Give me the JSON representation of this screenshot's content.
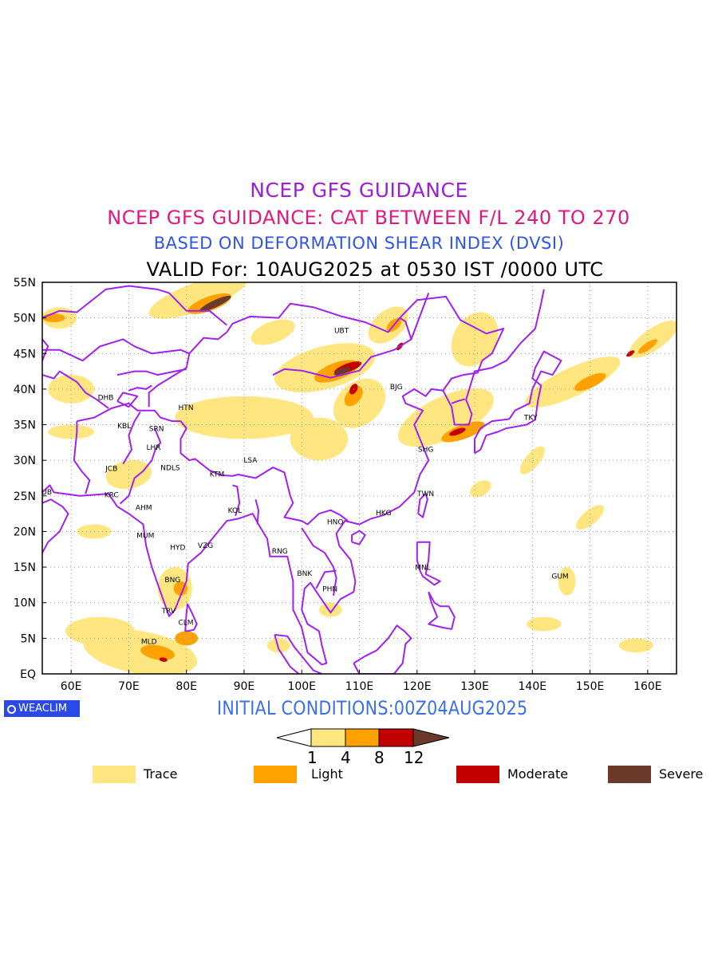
{
  "titles": {
    "line1": "NCEP GFS GUIDANCE",
    "line2": "NCEP GFS GUIDANCE: CAT BETWEEN F/L 240 TO 270",
    "line3": "BASED ON DEFORMATION SHEAR INDEX (DVSI)",
    "line4": "VALID For: 10AUG2025 at 0530 IST /0000 UTC"
  },
  "map": {
    "lon_range": [
      55,
      165
    ],
    "lat_range": [
      0,
      55
    ],
    "lat_labels": [
      "55N",
      "50N",
      "45N",
      "40N",
      "35N",
      "30N",
      "25N",
      "20N",
      "15N",
      "10N",
      "5N",
      "EQ"
    ],
    "lat_values": [
      55,
      50,
      45,
      40,
      35,
      30,
      25,
      20,
      15,
      10,
      5,
      0
    ],
    "lon_labels": [
      "60E",
      "70E",
      "80E",
      "90E",
      "100E",
      "110E",
      "120E",
      "130E",
      "140E",
      "150E",
      "160E"
    ],
    "lon_values": [
      60,
      70,
      80,
      90,
      100,
      110,
      120,
      130,
      140,
      150,
      160
    ],
    "grid": true,
    "colors": {
      "trace": "#ffe680",
      "light": "#ffa200",
      "moderate": "#c20000",
      "severe": "#6b3a2a",
      "border": "#a020f0"
    },
    "stations": [
      {
        "code": "UBT",
        "lon": 106.9,
        "lat": 47.9
      },
      {
        "code": "BJG",
        "lon": 116.4,
        "lat": 40.0
      },
      {
        "code": "DHB",
        "lon": 66.0,
        "lat": 38.5
      },
      {
        "code": "HTN",
        "lon": 79.9,
        "lat": 37.1
      },
      {
        "code": "KBL",
        "lon": 69.2,
        "lat": 34.5
      },
      {
        "code": "SRN",
        "lon": 74.8,
        "lat": 34.1
      },
      {
        "code": "TKY",
        "lon": 139.7,
        "lat": 35.7
      },
      {
        "code": "LHR",
        "lon": 74.3,
        "lat": 31.5
      },
      {
        "code": "SHG",
        "lon": 121.5,
        "lat": 31.2
      },
      {
        "code": "LSA",
        "lon": 91.1,
        "lat": 29.7
      },
      {
        "code": "JCB",
        "lon": 67.0,
        "lat": 28.5
      },
      {
        "code": "NDLS",
        "lon": 77.2,
        "lat": 28.6
      },
      {
        "code": "KTM",
        "lon": 85.3,
        "lat": 27.7
      },
      {
        "code": "DUB",
        "lon": 55.3,
        "lat": 25.2
      },
      {
        "code": "KRC",
        "lon": 67.0,
        "lat": 24.8
      },
      {
        "code": "TWN",
        "lon": 121.5,
        "lat": 25.0
      },
      {
        "code": "AHM",
        "lon": 72.6,
        "lat": 23.0
      },
      {
        "code": "KOL",
        "lon": 88.4,
        "lat": 22.6
      },
      {
        "code": "HKG",
        "lon": 114.2,
        "lat": 22.3
      },
      {
        "code": "HNO",
        "lon": 105.8,
        "lat": 21.0
      },
      {
        "code": "MUM",
        "lon": 72.9,
        "lat": 19.1
      },
      {
        "code": "HYD",
        "lon": 78.5,
        "lat": 17.4
      },
      {
        "code": "VZG",
        "lon": 83.3,
        "lat": 17.7
      },
      {
        "code": "RNG",
        "lon": 96.2,
        "lat": 16.9
      },
      {
        "code": "BNK",
        "lon": 100.5,
        "lat": 13.8
      },
      {
        "code": "MNL",
        "lon": 121.0,
        "lat": 14.6
      },
      {
        "code": "GUM",
        "lon": 144.8,
        "lat": 13.4
      },
      {
        "code": "BNG",
        "lon": 77.6,
        "lat": 12.9
      },
      {
        "code": "PHN",
        "lon": 104.9,
        "lat": 11.6
      },
      {
        "code": "TRV",
        "lon": 76.9,
        "lat": 8.5
      },
      {
        "code": "CLM",
        "lon": 79.9,
        "lat": 6.9
      },
      {
        "code": "MLD",
        "lon": 73.5,
        "lat": 4.2
      }
    ]
  },
  "initial_conditions": "INITIAL CONDITIONS:00Z04AUG2025",
  "logo": "WEACLIM",
  "colorbar": {
    "thresholds": [
      "1",
      "4",
      "8",
      "12"
    ]
  },
  "legend": [
    {
      "label": "Trace",
      "color": "#ffe680"
    },
    {
      "label": "Light",
      "color": "#ffa200"
    },
    {
      "label": "Moderate",
      "color": "#c20000"
    },
    {
      "label": "Severe",
      "color": "#6b3a2a"
    }
  ]
}
